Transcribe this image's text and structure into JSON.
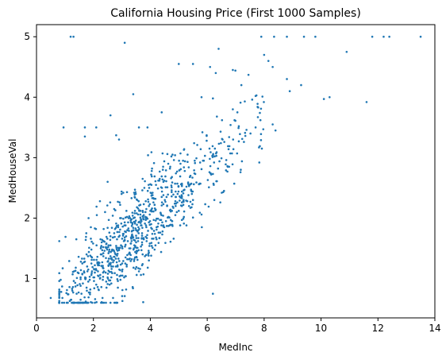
{
  "chart_data": {
    "type": "scatter",
    "title": "California Housing Price (First 1000 Samples)",
    "xlabel": "MedInc",
    "ylabel": "MedHouseVal",
    "xlim": [
      0,
      14
    ],
    "ylim": [
      0.35,
      5.2
    ],
    "xticks": [
      "0",
      "2",
      "4",
      "6",
      "8",
      "10",
      "12",
      "14"
    ],
    "yticks": [
      "1",
      "2",
      "3",
      "4",
      "5"
    ],
    "grid": false,
    "point_color": "#1f77b4",
    "highlight_points": [
      [
        0.5,
        0.68
      ],
      [
        0.8,
        1.62
      ],
      [
        0.85,
        0.98
      ],
      [
        0.95,
        3.5
      ],
      [
        1.2,
        5.0
      ],
      [
        1.3,
        5.0
      ],
      [
        1.7,
        3.5
      ],
      [
        1.7,
        3.35
      ],
      [
        2.1,
        3.5
      ],
      [
        2.5,
        2.6
      ],
      [
        2.6,
        0.6
      ],
      [
        2.6,
        3.7
      ],
      [
        2.8,
        3.37
      ],
      [
        2.9,
        3.3
      ],
      [
        3.1,
        4.9
      ],
      [
        3.4,
        4.05
      ],
      [
        3.6,
        3.5
      ],
      [
        3.9,
        3.5
      ],
      [
        4.4,
        3.75
      ],
      [
        5.0,
        4.55
      ],
      [
        5.5,
        4.55
      ],
      [
        6.1,
        4.5
      ],
      [
        6.3,
        4.4
      ],
      [
        6.4,
        4.8
      ],
      [
        6.9,
        4.45
      ],
      [
        7.7,
        3.5
      ],
      [
        7.9,
        5.0
      ],
      [
        8.0,
        4.7
      ],
      [
        8.15,
        4.6
      ],
      [
        8.3,
        4.5
      ],
      [
        8.35,
        5.0
      ],
      [
        8.3,
        3.55
      ],
      [
        8.4,
        3.45
      ],
      [
        8.8,
        5.0
      ],
      [
        8.8,
        4.3
      ],
      [
        8.9,
        4.1
      ],
      [
        9.3,
        4.2
      ],
      [
        9.4,
        5.0
      ],
      [
        9.8,
        5.0
      ],
      [
        10.1,
        3.97
      ],
      [
        10.3,
        4.0
      ],
      [
        10.9,
        4.75
      ],
      [
        11.6,
        3.92
      ],
      [
        11.8,
        5.0
      ],
      [
        12.2,
        5.0
      ],
      [
        12.4,
        5.0
      ],
      [
        13.5,
        5.0
      ],
      [
        6.2,
        0.75
      ],
      [
        6.2,
        3.98
      ],
      [
        7.2,
        4.2
      ],
      [
        6.9,
        3.8
      ],
      [
        5.8,
        4.0
      ]
    ],
    "sample_count": 1000
  }
}
